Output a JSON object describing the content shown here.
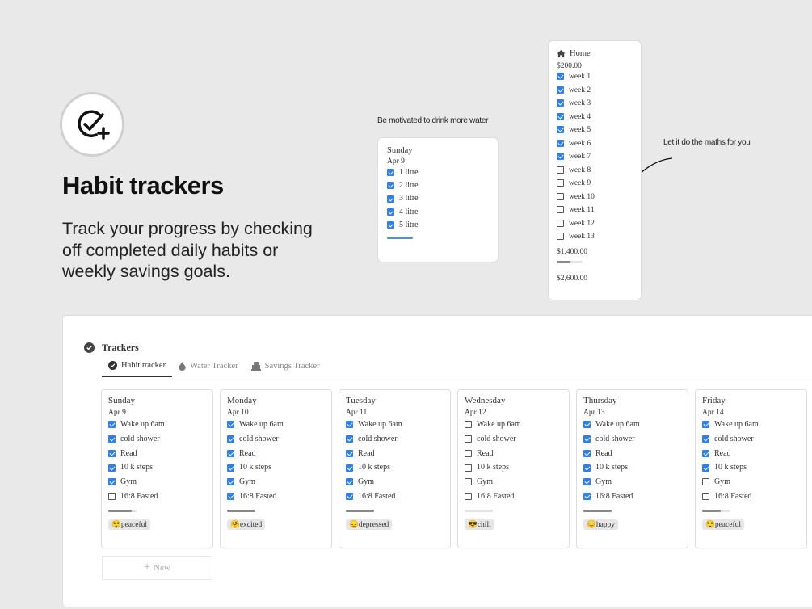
{
  "hero": {
    "icon": "check-circle-plus-icon",
    "title": "Habit trackers",
    "subtitle": "Track your progress by checking off completed daily habits or weekly savings goals."
  },
  "notes": {
    "water": "Be motivated to drink more water",
    "maths": "Let it do the maths for you"
  },
  "water_card": {
    "day": "Sunday",
    "date": "Apr 9",
    "items": [
      {
        "label": "1 litre",
        "checked": true
      },
      {
        "label": "2 litre",
        "checked": true
      },
      {
        "label": "3 litre",
        "checked": true
      },
      {
        "label": "4 litre",
        "checked": true
      },
      {
        "label": "5 litre",
        "checked": true
      }
    ],
    "progress": 100
  },
  "savings_card": {
    "icon": "home-icon",
    "title": "Home",
    "amount": "$200.00",
    "weeks": [
      {
        "label": "week 1",
        "checked": true
      },
      {
        "label": "week 2",
        "checked": true
      },
      {
        "label": "week 3",
        "checked": true
      },
      {
        "label": "week 4",
        "checked": true
      },
      {
        "label": "week 5",
        "checked": true
      },
      {
        "label": "week 6",
        "checked": true
      },
      {
        "label": "week 7",
        "checked": true
      },
      {
        "label": "week 8",
        "checked": false
      },
      {
        "label": "week 9",
        "checked": false
      },
      {
        "label": "week 10",
        "checked": false
      },
      {
        "label": "week 11",
        "checked": false
      },
      {
        "label": "week 12",
        "checked": false
      },
      {
        "label": "week 13",
        "checked": false
      }
    ],
    "saved": "$1,400.00",
    "progress": 54,
    "goal": "$2,600.00"
  },
  "trackers": {
    "title": "Trackers",
    "tabs": [
      {
        "label": "Habit tracker",
        "icon": "check-circle-icon",
        "active": true
      },
      {
        "label": "Water Tracker",
        "icon": "droplet-icon",
        "active": false
      },
      {
        "label": "Savings Tracker",
        "icon": "bank-icon",
        "active": false
      }
    ],
    "days": [
      {
        "day": "Sunday",
        "date": "Apr 9",
        "checks": [
          true,
          true,
          true,
          true,
          true,
          false
        ],
        "progress": 83,
        "mood": "peaceful",
        "emoji": "😌"
      },
      {
        "day": "Monday",
        "date": "Apr 10",
        "checks": [
          true,
          true,
          true,
          true,
          true,
          true
        ],
        "progress": 100,
        "mood": "excited",
        "emoji": "🤗"
      },
      {
        "day": "Tuesday",
        "date": "Apr 11",
        "checks": [
          true,
          true,
          true,
          true,
          true,
          true
        ],
        "progress": 100,
        "mood": "depressed",
        "emoji": "😞"
      },
      {
        "day": "Wednesday",
        "date": "Apr 12",
        "checks": [
          false,
          false,
          false,
          false,
          false,
          false
        ],
        "progress": 0,
        "mood": "chill",
        "emoji": "😎"
      },
      {
        "day": "Thursday",
        "date": "Apr 13",
        "checks": [
          true,
          true,
          true,
          true,
          true,
          true
        ],
        "progress": 100,
        "mood": "happy",
        "emoji": "😊"
      },
      {
        "day": "Friday",
        "date": "Apr 14",
        "checks": [
          true,
          true,
          true,
          true,
          false,
          false
        ],
        "progress": 67,
        "mood": "peaceful",
        "emoji": "😌"
      }
    ],
    "habits": [
      "Wake up 6am",
      "cold shower",
      "Read",
      "10 k steps",
      "Gym",
      "16:8 Fasted"
    ],
    "new_label": "New"
  },
  "colors": {
    "checkbox": "#2f80ed",
    "background": "#e9e9e9"
  }
}
